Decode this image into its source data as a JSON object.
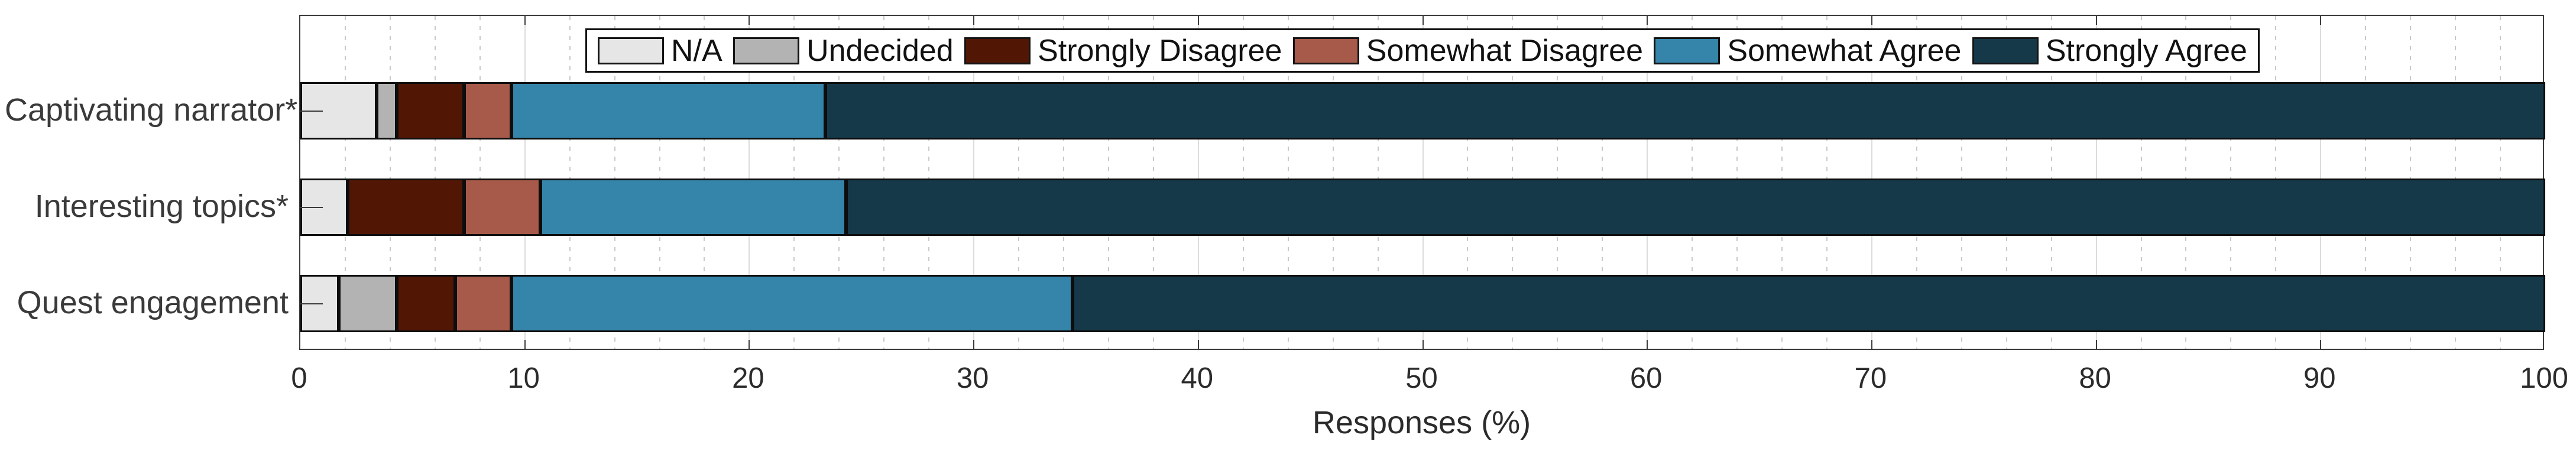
{
  "figure": {
    "background": "#ffffff",
    "text_color": "#2b2b2b",
    "axis_color": "#3c3c3c",
    "grid_major_color": "#dcdcdc",
    "grid_minor_color": "#c9c9c9",
    "bar_outline_color": "#0d0d0d"
  },
  "chart_data": {
    "type": "bar",
    "orientation": "horizontal",
    "stacked": true,
    "title": "",
    "xlabel": "Responses (%)",
    "ylabel": "",
    "xlim": [
      0,
      100
    ],
    "xticks": [
      0,
      10,
      20,
      30,
      40,
      50,
      60,
      70,
      80,
      90,
      100
    ],
    "minor_grid_step": 2,
    "grid": true,
    "legend_position": "top-center-inside",
    "categories": [
      "Captivating narrator*",
      "Interesting topics*",
      "Quest engagement"
    ],
    "series": [
      {
        "name": "N/A",
        "color": "#e6e6e6",
        "values": [
          3.4,
          2.1,
          1.7
        ]
      },
      {
        "name": "Undecided",
        "color": "#b3b3b3",
        "values": [
          0.9,
          0.0,
          2.6
        ]
      },
      {
        "name": "Strongly Disagree",
        "color": "#521605",
        "values": [
          3.0,
          5.2,
          2.6
        ]
      },
      {
        "name": "Somewhat Disagree",
        "color": "#a85a4a",
        "values": [
          2.1,
          3.4,
          2.5
        ]
      },
      {
        "name": "Somewhat Agree",
        "color": "#3585aa",
        "values": [
          14.0,
          13.6,
          25.0
        ]
      },
      {
        "name": "Strongly Agree",
        "color": "#16394a",
        "values": [
          76.6,
          75.7,
          65.6
        ]
      }
    ]
  }
}
